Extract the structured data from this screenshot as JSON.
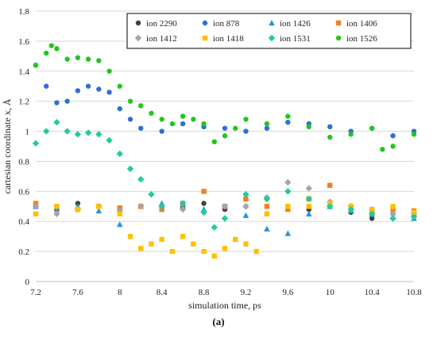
{
  "panel_label": "(a)",
  "chart_data": {
    "type": "scatter",
    "xlabel": "simulation  time,  ps",
    "ylabel": "cartesian  coordinate  x, Å",
    "xlim": [
      7.2,
      10.8
    ],
    "ylim": [
      0,
      1.8
    ],
    "x_ticks": [
      "7.2",
      "7.6",
      "8",
      "8.4",
      "8.8",
      "9.2",
      "9.6",
      "10",
      "10.4",
      "10.8"
    ],
    "y_ticks": [
      "0",
      "0.2",
      "0.4",
      "0.6",
      "0.8",
      "1",
      "1.2",
      "1.4",
      "1.6",
      "1.8"
    ],
    "grid": "horizontal",
    "legend_position": "top-right",
    "series": [
      {
        "name": "ion 2290",
        "color": "#404040",
        "marker": "circle",
        "x": [
          7.2,
          7.4,
          7.6,
          7.8,
          8.0,
          8.2,
          8.4,
          8.6,
          8.8,
          9.0,
          9.2,
          9.4,
          9.6,
          9.8,
          10.0,
          10.2,
          10.4,
          10.6,
          10.8
        ],
        "y": [
          0.5,
          0.48,
          0.52,
          0.5,
          0.47,
          0.5,
          0.48,
          0.5,
          0.52,
          0.48,
          0.5,
          0.55,
          0.5,
          0.48,
          0.5,
          0.46,
          0.42,
          0.45,
          0.44
        ]
      },
      {
        "name": "ion 878",
        "color": "#2e6fd6",
        "marker": "circle",
        "x": [
          7.2,
          7.3,
          7.4,
          7.5,
          7.6,
          7.7,
          7.8,
          7.9,
          8.0,
          8.1,
          8.2,
          8.4,
          8.6,
          8.8,
          9.0,
          9.2,
          9.4,
          9.6,
          9.8,
          10.0,
          10.2,
          10.4,
          10.6,
          10.8
        ],
        "y": [
          1.44,
          1.3,
          1.19,
          1.2,
          1.27,
          1.3,
          1.28,
          1.26,
          1.15,
          1.08,
          1.02,
          1.0,
          1.05,
          1.03,
          1.02,
          1.0,
          1.02,
          1.06,
          1.05,
          1.03,
          1.0,
          1.02,
          0.97,
          1.0
        ]
      },
      {
        "name": "ion 1426",
        "color": "#2a95d4",
        "marker": "triangle",
        "x": [
          7.2,
          7.4,
          7.6,
          7.8,
          8.0,
          8.2,
          8.4,
          8.6,
          8.8,
          9.0,
          9.2,
          9.4,
          9.6,
          9.8,
          10.0,
          10.2,
          10.4,
          10.6,
          10.8
        ],
        "y": [
          0.5,
          0.48,
          0.5,
          0.47,
          0.38,
          0.5,
          0.52,
          0.5,
          0.48,
          0.5,
          0.44,
          0.35,
          0.32,
          0.45,
          0.5,
          0.47,
          0.45,
          0.43,
          0.42
        ]
      },
      {
        "name": "ion 1406",
        "color": "#f08020",
        "marker": "square",
        "x": [
          7.2,
          7.4,
          7.6,
          7.8,
          8.0,
          8.2,
          8.4,
          8.6,
          8.8,
          9.0,
          9.2,
          9.4,
          9.6,
          9.8,
          10.0,
          10.2,
          10.4,
          10.6,
          10.8
        ],
        "y": [
          0.52,
          0.5,
          0.48,
          0.5,
          0.49,
          0.5,
          0.48,
          0.52,
          0.6,
          0.5,
          0.55,
          0.5,
          0.48,
          0.55,
          0.64,
          0.5,
          0.46,
          0.48,
          0.47
        ]
      },
      {
        "name": "ion 1412",
        "color": "#a6a6a6",
        "marker": "diamond",
        "x": [
          7.2,
          7.4,
          7.6,
          7.8,
          8.0,
          8.2,
          8.4,
          8.6,
          8.8,
          9.0,
          9.2,
          9.4,
          9.6,
          9.8,
          10.0,
          10.2,
          10.4,
          10.6,
          10.8
        ],
        "y": [
          0.5,
          0.45,
          0.48,
          0.5,
          0.47,
          0.5,
          0.5,
          0.48,
          0.46,
          0.5,
          0.5,
          0.56,
          0.66,
          0.62,
          0.53,
          0.5,
          0.48,
          0.45,
          0.45
        ]
      },
      {
        "name": "ion 1418",
        "color": "#ffc000",
        "marker": "square",
        "x": [
          7.2,
          7.4,
          7.6,
          7.8,
          8.0,
          8.1,
          8.2,
          8.3,
          8.4,
          8.5,
          8.6,
          8.7,
          8.8,
          8.9,
          9.0,
          9.1,
          9.2,
          9.3,
          9.4,
          9.6,
          9.8,
          10.0,
          10.2,
          10.4,
          10.6,
          10.8
        ],
        "y": [
          0.45,
          0.5,
          0.48,
          0.5,
          0.45,
          0.3,
          0.22,
          0.25,
          0.28,
          0.2,
          0.3,
          0.25,
          0.2,
          0.17,
          0.22,
          0.28,
          0.25,
          0.2,
          0.45,
          0.5,
          0.5,
          0.52,
          0.5,
          0.48,
          0.5,
          0.46
        ]
      },
      {
        "name": "ion 1531",
        "color": "#22cc99",
        "marker": "diamond",
        "x": [
          7.2,
          7.3,
          7.4,
          7.5,
          7.6,
          7.7,
          7.8,
          7.9,
          8.0,
          8.1,
          8.2,
          8.3,
          8.4,
          8.6,
          8.8,
          8.9,
          9.0,
          9.2,
          9.4,
          9.6,
          9.8,
          10.0,
          10.2,
          10.4,
          10.6,
          10.8
        ],
        "y": [
          0.92,
          1.0,
          1.06,
          1.0,
          0.98,
          0.99,
          0.98,
          0.94,
          0.85,
          0.75,
          0.68,
          0.58,
          0.5,
          0.52,
          0.46,
          0.36,
          0.42,
          0.58,
          0.55,
          0.6,
          0.55,
          0.5,
          0.48,
          0.45,
          0.42,
          0.43
        ]
      },
      {
        "name": "ion 1526",
        "color": "#22c71e",
        "marker": "circle",
        "x": [
          7.2,
          7.3,
          7.35,
          7.4,
          7.5,
          7.6,
          7.7,
          7.8,
          7.9,
          8.0,
          8.1,
          8.2,
          8.3,
          8.4,
          8.5,
          8.6,
          8.7,
          8.8,
          8.9,
          9.0,
          9.1,
          9.2,
          9.4,
          9.6,
          9.8,
          10.0,
          10.2,
          10.4,
          10.5,
          10.6,
          10.8
        ],
        "y": [
          1.44,
          1.52,
          1.57,
          1.55,
          1.48,
          1.49,
          1.48,
          1.47,
          1.4,
          1.3,
          1.2,
          1.17,
          1.12,
          1.08,
          1.05,
          1.1,
          1.08,
          1.05,
          0.93,
          0.97,
          1.02,
          1.08,
          1.05,
          1.1,
          1.03,
          0.96,
          0.98,
          1.02,
          0.88,
          0.9,
          0.98
        ]
      }
    ]
  }
}
